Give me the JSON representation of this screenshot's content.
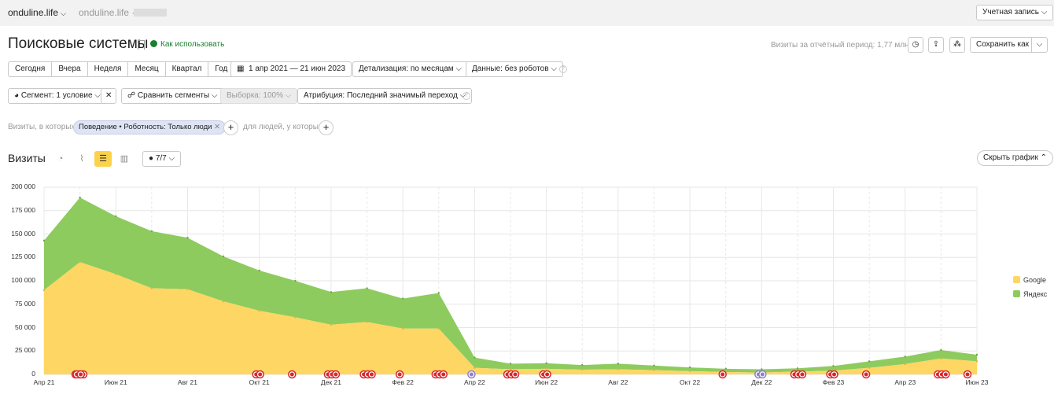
{
  "header": {
    "site": "onduline.life",
    "site_secondary": "onduline.life ·",
    "account_label": "Учетная запись"
  },
  "page": {
    "title": "Поисковые системы",
    "howto": "Как использовать",
    "visits_period": "Визиты за отчётный период: 1,77 млн",
    "save_label": "Сохранить как"
  },
  "periods": [
    "Сегодня",
    "Вчера",
    "Неделя",
    "Месяц",
    "Квартал",
    "Год"
  ],
  "toolbar": {
    "date_range": "1 апр 2021 — 21 июн 2023",
    "detail": "Детализация: по месяцам",
    "data": "Данные: без роботов",
    "segment": "Сегмент: 1 условие",
    "compare": "Сравнить сегменты",
    "sample": "Выборка: 100%",
    "attribution": "Атрибуция: Последний значимый переход"
  },
  "filters": {
    "visits_label": "Визиты, в которых",
    "condition": "Поведение • Роботность: Только люди",
    "people_label": "для людей, у которых"
  },
  "chart_header": {
    "title": "Визиты",
    "comments": "7/7",
    "hide_label": "Скрыть график"
  },
  "colors": {
    "google": "#fdd663",
    "yandex": "#8ecb5f",
    "marker": "#d9262c",
    "marker_alt": "#8f7fc8"
  },
  "chart_data": {
    "type": "area",
    "stacked": true,
    "x": [
      "2021-04",
      "2021-05",
      "2021-06",
      "2021-07",
      "2021-08",
      "2021-09",
      "2021-10",
      "2021-11",
      "2021-12",
      "2022-01",
      "2022-02",
      "2022-03",
      "2022-04",
      "2022-05",
      "2022-06",
      "2022-07",
      "2022-08",
      "2022-09",
      "2022-10",
      "2022-11",
      "2022-12",
      "2023-01",
      "2023-02",
      "2023-03",
      "2023-04",
      "2023-05",
      "2023-06"
    ],
    "x_tick_labels": [
      "Апр 21",
      "Июн 21",
      "Авг 21",
      "Окт 21",
      "Дек 21",
      "Фев 22",
      "Апр 22",
      "Июн 22",
      "Авг 22",
      "Окт 22",
      "Дек 22",
      "Фев 23",
      "Апр 23",
      "Июн 23"
    ],
    "y_ticks": [
      "0",
      "25 000",
      "50 000",
      "75 000",
      "100 000",
      "125 000",
      "150 000",
      "175 000",
      "200 000"
    ],
    "ylim": [
      0,
      200000
    ],
    "series": [
      {
        "name": "Google",
        "values": [
          90000,
          120000,
          107000,
          92000,
          91000,
          78000,
          68000,
          61000,
          53000,
          56000,
          49000,
          49000,
          7000,
          5500,
          6000,
          5000,
          5500,
          4500,
          3500,
          2500,
          2000,
          3000,
          4000,
          7000,
          11000,
          17000,
          14000
        ]
      },
      {
        "name": "Яндекс",
        "values": [
          53000,
          69000,
          62000,
          61000,
          55000,
          48000,
          43000,
          39000,
          35000,
          36000,
          32000,
          38000,
          11000,
          6000,
          6000,
          5000,
          6000,
          5000,
          4000,
          3500,
          3500,
          3500,
          5000,
          7000,
          8000,
          9000,
          7000
        ]
      }
    ],
    "legend": [
      "Google",
      "Яндекс"
    ],
    "legend_position": "right",
    "grid": true,
    "markers": [
      {
        "x": "2021-04",
        "type": "red",
        "count": 3
      },
      {
        "x": "2021-05",
        "type": "red",
        "count": 2
      },
      {
        "x": "2021-10",
        "type": "red",
        "count": 2
      },
      {
        "x": "2021-11",
        "type": "red",
        "count": 1
      },
      {
        "x": "2021-12",
        "type": "red",
        "count": 3
      },
      {
        "x": "2022-01",
        "type": "red",
        "count": 3
      },
      {
        "x": "2022-02",
        "type": "red",
        "count": 1
      },
      {
        "x": "2022-03",
        "type": "red",
        "count": 3
      },
      {
        "x": "2022-04",
        "type": "purple",
        "count": 1
      },
      {
        "x": "2022-05",
        "type": "red",
        "count": 3
      },
      {
        "x": "2022-06",
        "type": "red",
        "count": 2
      },
      {
        "x": "2022-11",
        "type": "red",
        "count": 1
      },
      {
        "x": "2022-12",
        "type": "purple",
        "count": 2
      },
      {
        "x": "2023-01",
        "type": "red",
        "count": 3
      },
      {
        "x": "2023-02",
        "type": "red",
        "count": 2
      },
      {
        "x": "2023-03",
        "type": "red",
        "count": 1
      },
      {
        "x": "2023-05",
        "type": "red",
        "count": 3
      },
      {
        "x": "2023-06",
        "type": "red",
        "count": 1
      }
    ]
  }
}
